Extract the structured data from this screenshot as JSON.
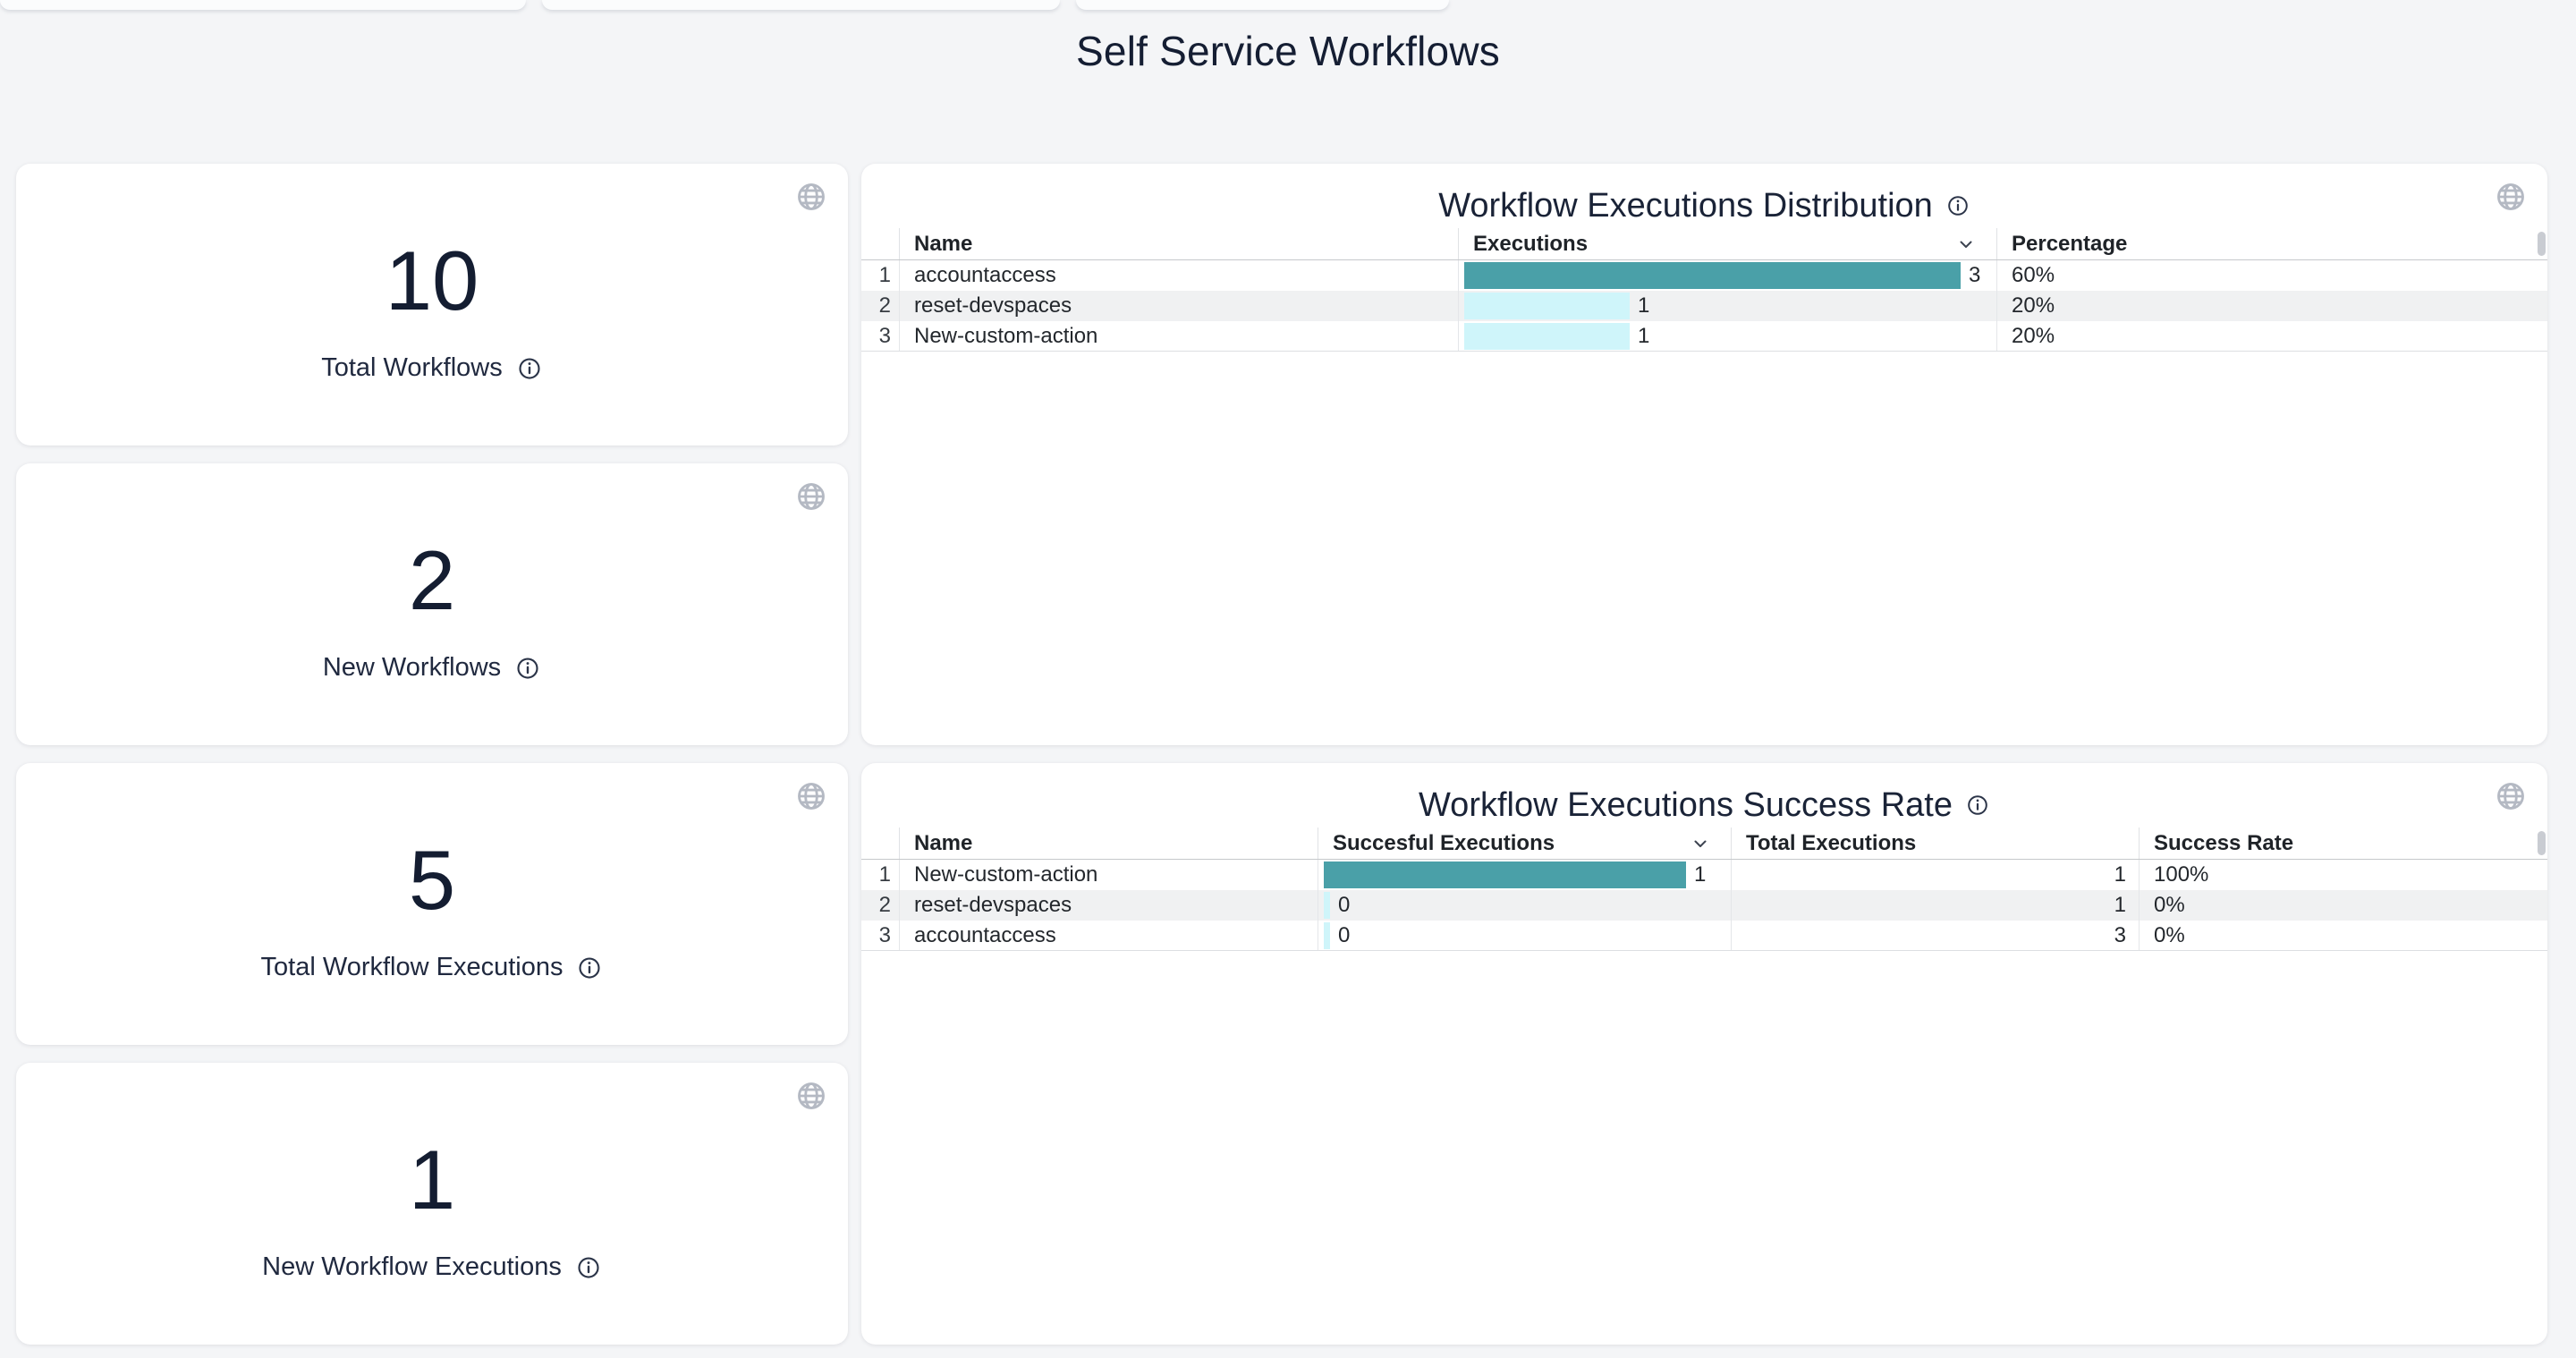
{
  "page": {
    "title": "Self Service Workflows"
  },
  "icons": {
    "card_action": "globe-icon",
    "label_help": "info-icon",
    "sort_indicator": "chevron-down-icon"
  },
  "colors": {
    "bar_teal": "#4AA0A8",
    "bar_cyan": "#CFF5FA",
    "row_stripe": "#F0F1F2",
    "background": "#F4F5F7"
  },
  "stat_cards": [
    {
      "value": "10",
      "label": "Total Workflows"
    },
    {
      "value": "2",
      "label": "New Workflows"
    },
    {
      "value": "5",
      "label": "Total Workflow Executions"
    },
    {
      "value": "1",
      "label": "New Workflow Executions"
    }
  ],
  "tables": {
    "distribution": {
      "title": "Workflow Executions Distribution",
      "columns": [
        "Name",
        "Executions",
        "Percentage"
      ],
      "sorted_column": "Executions",
      "bar_max": 3,
      "rows": [
        {
          "num": "1",
          "name": "accountaccess",
          "value": 3,
          "value_label": "3",
          "percentage": "60%"
        },
        {
          "num": "2",
          "name": "reset-devspaces",
          "value": 1,
          "value_label": "1",
          "percentage": "20%"
        },
        {
          "num": "3",
          "name": "New-custom-action",
          "value": 1,
          "value_label": "1",
          "percentage": "20%"
        }
      ]
    },
    "success": {
      "title": "Workflow Executions Success Rate",
      "columns": [
        "Name",
        "Succesful Executions",
        "Total Executions",
        "Success Rate"
      ],
      "sorted_column": "Succesful Executions",
      "bar_max": 1,
      "rows": [
        {
          "num": "1",
          "name": "New-custom-action",
          "successful": 1,
          "successful_label": "1",
          "total": "1",
          "rate": "100%"
        },
        {
          "num": "2",
          "name": "reset-devspaces",
          "successful": 0,
          "successful_label": "0",
          "total": "1",
          "rate": "0%"
        },
        {
          "num": "3",
          "name": "accountaccess",
          "successful": 0,
          "successful_label": "0",
          "total": "3",
          "rate": "0%"
        }
      ]
    }
  }
}
